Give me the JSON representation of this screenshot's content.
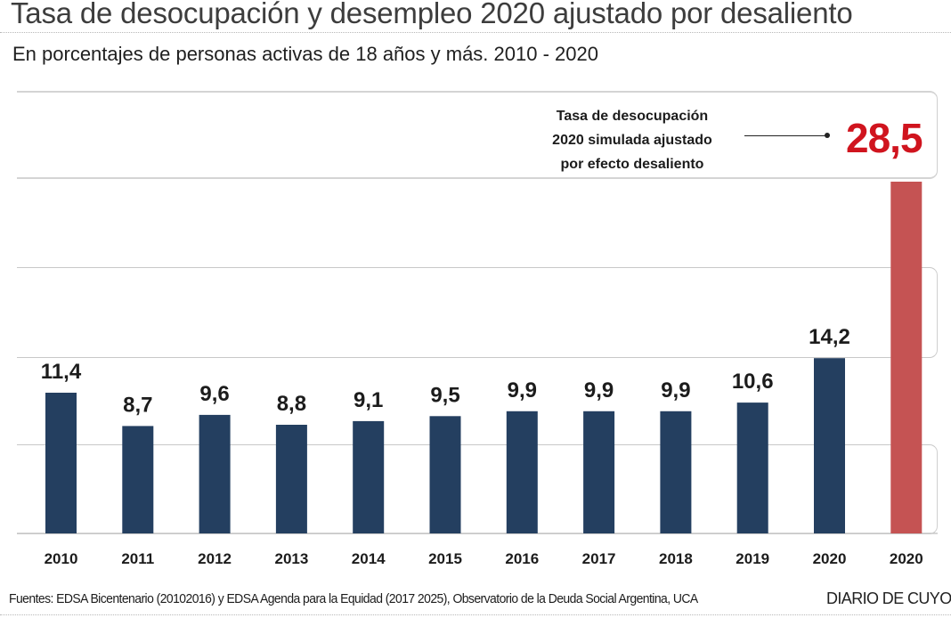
{
  "header": {
    "title": "Tasa de desocupación y desempleo 2020 ajustado por desaliento",
    "subtitle": "En porcentajes de personas activas de 18 años y más. 2010 - 2020"
  },
  "annotation": {
    "lines": [
      "Tasa de desocupación",
      "2020 simulada ajustado",
      "por efecto desaliento"
    ],
    "value": "28,5"
  },
  "footer": {
    "source": "Fuentes: EDSA Bicentenario (20102016) y EDSA Agenda para la Equidad (2017 2025), Observatorio de la Deuda Social Argentina, UCA",
    "brand": "DIARIO DE CUYO"
  },
  "colors": {
    "bar_primary": "#243f60",
    "bar_highlight": "#c55353",
    "highlight_text": "#d0141e"
  },
  "chart_data": {
    "type": "bar",
    "title": "Tasa de desocupación y desempleo 2020 ajustado por desaliento",
    "subtitle": "En porcentajes de personas activas de 18 años y más. 2010 - 2020",
    "xlabel": "",
    "ylabel": "",
    "ylim": [
      0,
      28.5
    ],
    "grid": true,
    "categories": [
      "2010",
      "2011",
      "2012",
      "2013",
      "2014",
      "2015",
      "2016",
      "2017",
      "2018",
      "2019",
      "2020",
      "2020"
    ],
    "values": [
      11.4,
      8.7,
      9.6,
      8.8,
      9.1,
      9.5,
      9.9,
      9.9,
      9.9,
      10.6,
      14.2,
      28.5
    ],
    "labels": [
      "11,4",
      "8,7",
      "9,6",
      "8,8",
      "9,1",
      "9,5",
      "9,9",
      "9,9",
      "9,9",
      "10,6",
      "14,2",
      ""
    ],
    "series": [
      {
        "name": "Tasa de desocupación",
        "values": [
          11.4,
          8.7,
          9.6,
          8.8,
          9.1,
          9.5,
          9.9,
          9.9,
          9.9,
          10.6,
          14.2,
          null
        ]
      },
      {
        "name": "Tasa de desocupación 2020 simulada ajustado por efecto desaliento",
        "values": [
          null,
          null,
          null,
          null,
          null,
          null,
          null,
          null,
          null,
          null,
          null,
          28.5
        ]
      }
    ],
    "highlight_index": 11
  }
}
